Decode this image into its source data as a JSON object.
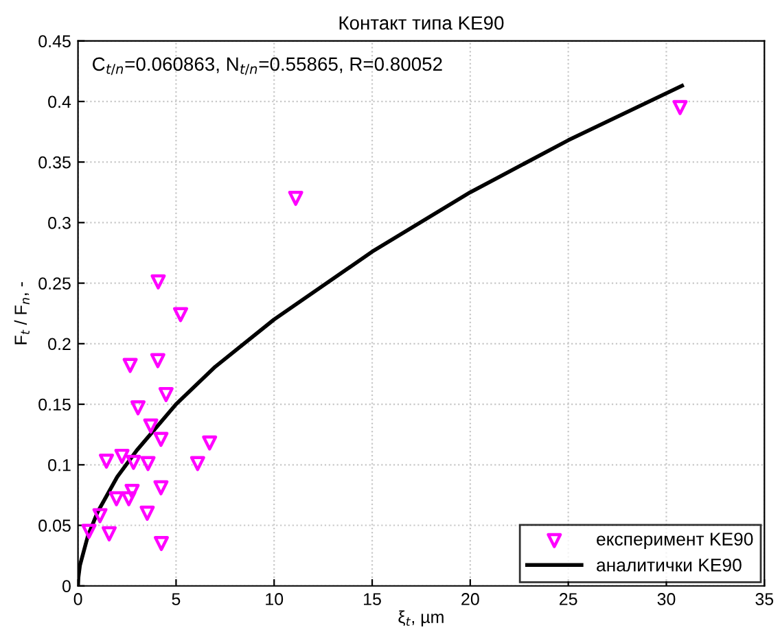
{
  "chart_data": {
    "type": "scatter",
    "title": "Контакт типа KE90",
    "xlabel": "ξ$_{t}$, µm",
    "ylabel": "F$_{t}$ / F$_{n}$, -",
    "annotations": [
      "C$_{t/n}$=0.060863, N$_{t/n}$=0.55865, R=0.80052"
    ],
    "series": [
      {
        "name": "експеримент KE90",
        "color": "#ff00ff",
        "marker": "triangle",
        "x": [
          0.56,
          1.12,
          1.59,
          1.45,
          2.24,
          1.96,
          2.59,
          2.76,
          2.83,
          2.66,
          3.06,
          3.53,
          3.57,
          3.71,
          4.09,
          4.07,
          4.23,
          4.23,
          4.25,
          4.49,
          5.23,
          6.1,
          6.71,
          11.1,
          30.7
        ],
        "values": [
          0.045,
          0.058,
          0.043,
          0.103,
          0.107,
          0.072,
          0.072,
          0.078,
          0.102,
          0.182,
          0.147,
          0.06,
          0.101,
          0.132,
          0.251,
          0.186,
          0.121,
          0.081,
          0.035,
          0.158,
          0.224,
          0.101,
          0.118,
          0.32,
          0.395
        ]
      },
      {
        "name": "аналитички KE90",
        "type": "line",
        "color": "#000000",
        "marker": "none",
        "line_style": "solid",
        "x": [
          0,
          0.02,
          0.1,
          0.5,
          1,
          2,
          3,
          5,
          7,
          10,
          15,
          20,
          25,
          30.8
        ],
        "values": [
          0,
          0.007,
          0.017,
          0.041,
          0.061,
          0.09,
          0.112,
          0.15,
          0.181,
          0.22,
          0.276,
          0.325,
          0.368,
          0.413
        ]
      }
    ],
    "xlim": [
      0,
      35
    ],
    "xticks": [
      0,
      5,
      10,
      15,
      20,
      25,
      30,
      35
    ],
    "ylim": [
      0,
      0.45
    ],
    "yticks": [
      0,
      0.05,
      0.1,
      0.15,
      0.2,
      0.25,
      0.3,
      0.35,
      0.4,
      0.45
    ],
    "grid": true,
    "legend": "bottom right"
  }
}
